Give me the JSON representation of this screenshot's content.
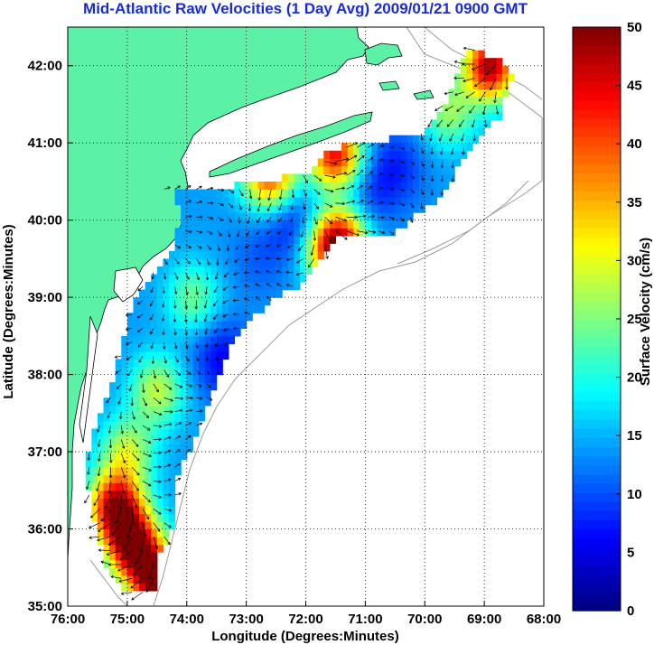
{
  "chart_data": {
    "type": "heatmap",
    "title": "Mid-Atlantic Raw Velocities (1 Day Avg) 2009/01/21 0900 GMT",
    "xlabel": "Longitude (Degrees:Minutes)",
    "ylabel": "Latitude (Degrees:Minutes)",
    "xlim": [
      -76,
      -68
    ],
    "ylim": [
      35,
      42.5
    ],
    "x_ticks": [
      -76,
      -75,
      -74,
      -73,
      -72,
      -71,
      -70,
      -69,
      -68
    ],
    "x_tick_labels": [
      "76:00",
      "75:00",
      "74:00",
      "73:00",
      "72:00",
      "71:00",
      "70:00",
      "69:00",
      "68:00"
    ],
    "y_ticks": [
      35,
      36,
      37,
      38,
      39,
      40,
      41,
      42
    ],
    "y_tick_labels": [
      "35:00",
      "36:00",
      "37:00",
      "38:00",
      "39:00",
      "40:00",
      "41:00",
      "42:00"
    ],
    "grid": true,
    "colorbar": {
      "label": "Surface Velocity (cm/s)",
      "range": [
        0,
        50
      ],
      "ticks": [
        0,
        5,
        10,
        15,
        20,
        25,
        30,
        35,
        40,
        45,
        50
      ],
      "tick_labels": [
        "0",
        "5",
        "10",
        "15",
        "20",
        "25",
        "30",
        "35",
        "40",
        "45",
        "50"
      ],
      "colormap": "jet",
      "position": "right"
    },
    "land_color": "#5cf2a6",
    "hotspots": [
      {
        "lon": -74.9,
        "lat": 35.8,
        "speed": 48
      },
      {
        "lon": -74.5,
        "lat": 35.3,
        "speed": 48
      },
      {
        "lon": -75.2,
        "lat": 36.3,
        "speed": 46
      },
      {
        "lon": -68.9,
        "lat": 42.0,
        "speed": 48
      },
      {
        "lon": -72.6,
        "lat": 40.6,
        "speed": 42
      },
      {
        "lon": -71.5,
        "lat": 40.85,
        "speed": 44
      },
      {
        "lon": -71.6,
        "lat": 39.6,
        "speed": 32
      },
      {
        "lon": -74.5,
        "lat": 37.8,
        "speed": 28
      },
      {
        "lon": -75.0,
        "lat": 37.0,
        "speed": 28
      },
      {
        "lon": -73.9,
        "lat": 39.0,
        "speed": 24
      },
      {
        "lon": -71.4,
        "lat": 39.75,
        "speed": 38
      },
      {
        "lon": -69.6,
        "lat": 41.4,
        "speed": 26
      }
    ],
    "coldspots": [
      {
        "lon": -72.2,
        "lat": 40.0,
        "speed": 7
      },
      {
        "lon": -73.4,
        "lat": 38.2,
        "speed": 6
      },
      {
        "lon": -70.5,
        "lat": 40.7,
        "speed": 8
      },
      {
        "lon": -71.0,
        "lat": 40.3,
        "speed": 9
      },
      {
        "lon": -72.8,
        "lat": 39.5,
        "speed": 11
      }
    ]
  }
}
